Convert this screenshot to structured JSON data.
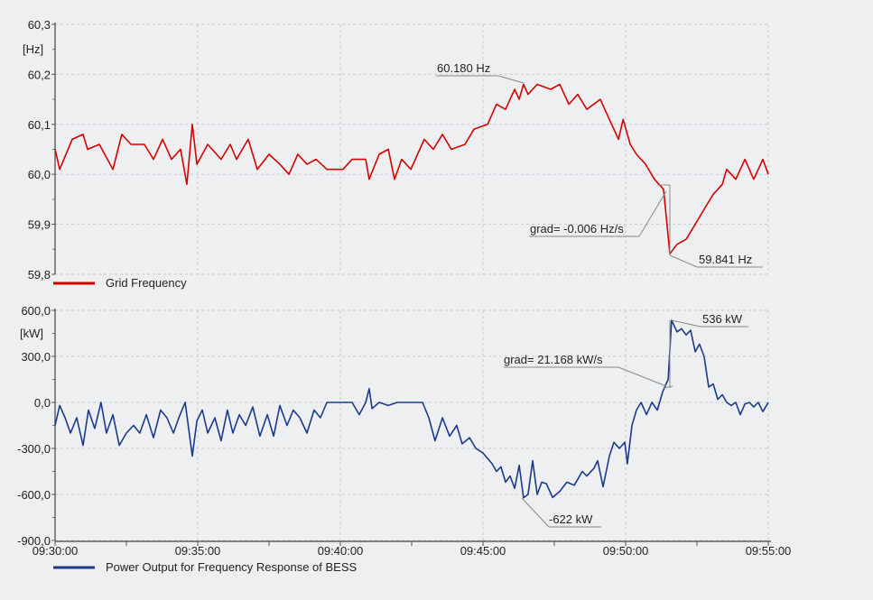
{
  "chart_data": [
    {
      "type": "line",
      "title": "",
      "xlabel": "",
      "ylabel": "[Hz]",
      "x_unit": "minutes after 09:30:00",
      "xlim": [
        0,
        25
      ],
      "ylim": [
        59.8,
        60.3
      ],
      "yticks": [
        "60,3",
        "60,2",
        "60,1",
        "60,0",
        "59,9",
        "59,8"
      ],
      "ytick_values": [
        60.3,
        60.2,
        60.1,
        60.0,
        59.9,
        59.8
      ],
      "grid": true,
      "legend_position": "bottom-left",
      "series": [
        {
          "name": "Grid Frequency",
          "color": "#d40000",
          "x": [
            0,
            0.16,
            0.6,
            0.98,
            1.14,
            1.55,
            2.03,
            2.34,
            2.66,
            3.13,
            3.45,
            3.77,
            4.08,
            4.4,
            4.62,
            4.81,
            4.97,
            5.35,
            5.82,
            6.14,
            6.36,
            6.77,
            7.09,
            7.5,
            7.88,
            8.2,
            8.51,
            8.83,
            9.15,
            9.53,
            9.84,
            10.09,
            10.41,
            10.89,
            11.01,
            11.36,
            11.68,
            11.9,
            12.15,
            12.47,
            12.94,
            13.26,
            13.58,
            13.89,
            14.37,
            14.68,
            15.16,
            15.47,
            15.79,
            15.95,
            16.11,
            16.27,
            16.42,
            16.58,
            16.9,
            17.37,
            17.69,
            18.01,
            18.32,
            18.64,
            19.11,
            19.43,
            19.75,
            19.91,
            20.16,
            20.38,
            20.7,
            21.01,
            21.33,
            21.55,
            21.8,
            22.12,
            22.44,
            22.75,
            23.07,
            23.39,
            23.54,
            23.86,
            24.18,
            24.49,
            24.81,
            25
          ],
          "y": [
            60.05,
            60.01,
            60.07,
            60.08,
            60.05,
            60.06,
            60.01,
            60.08,
            60.06,
            60.06,
            60.03,
            60.07,
            60.03,
            60.05,
            59.98,
            60.1,
            60.02,
            60.06,
            60.03,
            60.06,
            60.03,
            60.07,
            60.01,
            60.04,
            60.02,
            60.0,
            60.04,
            60.02,
            60.03,
            60.01,
            60.01,
            60.01,
            60.03,
            60.03,
            59.99,
            60.04,
            60.05,
            59.99,
            60.03,
            60.01,
            60.07,
            60.05,
            60.08,
            60.05,
            60.06,
            60.09,
            60.1,
            60.14,
            60.13,
            60.15,
            60.17,
            60.15,
            60.18,
            60.16,
            60.18,
            60.17,
            60.18,
            60.14,
            60.16,
            60.13,
            60.15,
            60.11,
            60.07,
            60.11,
            60.06,
            60.04,
            60.02,
            59.99,
            59.97,
            59.841,
            59.86,
            59.87,
            59.9,
            59.93,
            59.96,
            59.98,
            60.01,
            59.99,
            60.03,
            59.99,
            60.03,
            60.0
          ]
        }
      ],
      "annotations": [
        {
          "text": "60.180 Hz",
          "x": 16.42,
          "y": 60.18
        },
        {
          "text": "grad= -0.006 Hz/s",
          "x": 21.55,
          "y": 59.98
        },
        {
          "text": "59.841 Hz",
          "x": 21.55,
          "y": 59.841
        }
      ]
    },
    {
      "type": "line",
      "title": "",
      "xlabel": "",
      "ylabel": "[kW]",
      "x_unit": "minutes after 09:30:00",
      "xlim": [
        0,
        25
      ],
      "ylim": [
        -900,
        600
      ],
      "yticks": [
        "600,0",
        "300,0",
        "0,0",
        "-300,0",
        "-600,0",
        "-900,0"
      ],
      "ytick_values": [
        600,
        300,
        0,
        -300,
        -600,
        -900
      ],
      "xticks": [
        "09:30:00",
        "09:35:00",
        "09:40:00",
        "09:45:00",
        "09:50:00",
        "09:55:00"
      ],
      "xtick_values": [
        0,
        5,
        10,
        15,
        20,
        25
      ],
      "grid": true,
      "legend_position": "bottom-left",
      "series": [
        {
          "name": "Power Output for Frequency Response of BESS",
          "color": "#1a3a8c",
          "x": [
            0,
            0.16,
            0.35,
            0.54,
            0.76,
            0.98,
            1.17,
            1.39,
            1.61,
            1.8,
            2.03,
            2.25,
            2.5,
            2.75,
            2.97,
            3.2,
            3.45,
            3.7,
            3.92,
            4.15,
            4.34,
            4.56,
            4.81,
            4.97,
            5.16,
            5.35,
            5.6,
            5.82,
            6.04,
            6.23,
            6.46,
            6.68,
            6.93,
            7.18,
            7.44,
            7.66,
            7.88,
            8.13,
            8.35,
            8.58,
            8.83,
            9.08,
            9.3,
            9.53,
            9.84,
            10.09,
            10.41,
            10.66,
            10.89,
            11.01,
            11.11,
            11.36,
            11.68,
            11.99,
            12.31,
            12.63,
            12.88,
            13.1,
            13.32,
            13.58,
            13.83,
            14.08,
            14.27,
            14.53,
            14.75,
            15,
            15.32,
            15.47,
            15.63,
            15.79,
            15.95,
            16.11,
            16.27,
            16.42,
            16.58,
            16.74,
            16.9,
            17.06,
            17.22,
            17.44,
            17.69,
            17.94,
            18.2,
            18.48,
            18.64,
            18.89,
            19.02,
            19.21,
            19.43,
            19.59,
            19.78,
            19.97,
            20.06,
            20.22,
            20.38,
            20.54,
            20.73,
            20.92,
            21.11,
            21.3,
            21.49,
            21.61,
            21.8,
            21.96,
            22.12,
            22.28,
            22.44,
            22.59,
            22.75,
            22.91,
            23.07,
            23.23,
            23.39,
            23.54,
            23.7,
            23.86,
            24.02,
            24.18,
            24.34,
            24.49,
            24.65,
            24.81,
            25
          ],
          "y": [
            -150,
            -20,
            -100,
            -200,
            -100,
            -280,
            -50,
            -170,
            0,
            -200,
            -80,
            -280,
            -200,
            -150,
            -200,
            -80,
            -230,
            -50,
            -100,
            -200,
            -100,
            0,
            -350,
            -120,
            -50,
            -200,
            -100,
            -250,
            -50,
            -200,
            -80,
            -150,
            -30,
            -220,
            -80,
            -220,
            -20,
            -150,
            -50,
            -100,
            -200,
            -50,
            -100,
            0,
            0,
            0,
            0,
            -80,
            0,
            90,
            -40,
            0,
            -20,
            0,
            0,
            0,
            0,
            -100,
            -250,
            -100,
            -220,
            -150,
            -270,
            -230,
            -300,
            -330,
            -400,
            -450,
            -420,
            -520,
            -480,
            -560,
            -410,
            -622,
            -600,
            -380,
            -600,
            -520,
            -530,
            -620,
            -580,
            -520,
            -540,
            -450,
            -480,
            -430,
            -380,
            -550,
            -350,
            -260,
            -300,
            -260,
            -400,
            -150,
            -50,
            0,
            -80,
            0,
            -50,
            70,
            150,
            536,
            460,
            480,
            440,
            470,
            330,
            380,
            300,
            100,
            120,
            20,
            50,
            0,
            -20,
            0,
            -80,
            -10,
            0,
            -30,
            0,
            -60,
            0
          ]
        }
      ],
      "annotations": [
        {
          "text": "536 kW",
          "x": 21.61,
          "y": 536
        },
        {
          "text": "grad= 21.168 kW/s",
          "x": 21.55,
          "y": 100
        },
        {
          "text": "-622 kW",
          "x": 16.42,
          "y": -622
        }
      ]
    }
  ]
}
